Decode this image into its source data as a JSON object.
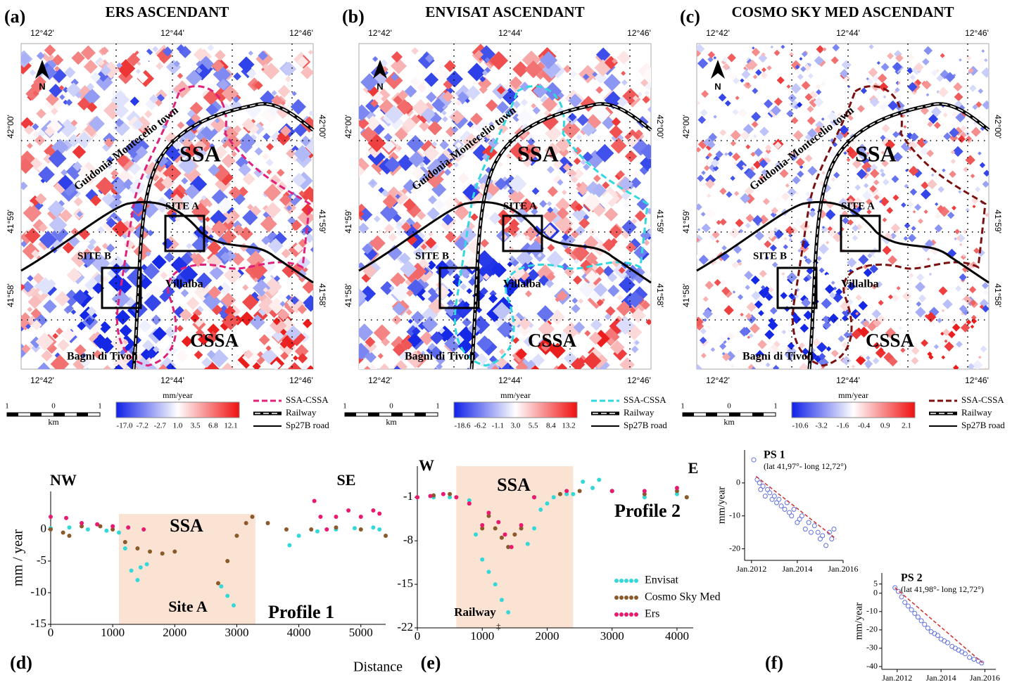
{
  "maps": [
    {
      "label": "(a)",
      "title": "ERS ASCENDANT",
      "lon_labels": [
        "12°42'",
        "12°44'",
        "12°46'"
      ],
      "lat_labels": [
        "42°00'",
        "41°59'",
        "41°58'"
      ],
      "north": "N",
      "places": {
        "ssa": "SSA",
        "cssa": "CSSA",
        "site_a": "SITE A",
        "site_b": "SITE B",
        "villalba": "Villalba",
        "bagni": "Bagni di Tivoli",
        "town": "Guidonia-Montecelio town"
      },
      "colorbar": {
        "unit": "mm/year",
        "ticks": [
          "-17.0",
          "-7.2",
          "-2.7",
          "1.0",
          "3.5",
          "6.8",
          "12.1"
        ]
      },
      "legend": [
        "SSA-CSSA",
        "Railway",
        "Sp27B road"
      ],
      "boundary_color": "#e0207a",
      "scale": {
        "labels": [
          "1",
          "0",
          "1"
        ],
        "unit": "km"
      }
    },
    {
      "label": "(b)",
      "title": "ENVISAT ASCENDANT",
      "lon_labels": [
        "12°42'",
        "12°44'",
        "12°46'"
      ],
      "lat_labels": [
        "42°00'",
        "41°59'",
        "41°58'"
      ],
      "north": "N",
      "places": {
        "ssa": "SSA",
        "cssa": "CSSA",
        "site_a": "SITE A",
        "site_b": "SITE B",
        "villalba": "Villalba",
        "bagni": "Bagni di Tivoli",
        "town": "Guidonia-Montecelio town"
      },
      "colorbar": {
        "unit": "mm/year",
        "ticks": [
          "-18.6",
          "-6.2",
          "-1.1",
          "3.0",
          "5.5",
          "8.4",
          "13.2"
        ]
      },
      "legend": [
        "SSA-CSSA",
        "Railway",
        "Sp27B road"
      ],
      "boundary_color": "#30d8e0",
      "scale": {
        "labels": [
          "1",
          "0",
          "1"
        ],
        "unit": "km"
      }
    },
    {
      "label": "(c)",
      "title": "COSMO SKY MED ASCENDANT",
      "lon_labels": [
        "12°42'",
        "12°44'",
        "12°46'"
      ],
      "lat_labels": [
        "42°00'",
        "41°59'",
        "41°58'"
      ],
      "north": "N",
      "places": {
        "ssa": "SSA",
        "cssa": "CSSA",
        "site_a": "SITE A",
        "site_b": "SITE B",
        "villalba": "Villalba",
        "bagni": "Bagni di Tivoli",
        "town": "Guidonia-Montecelio town"
      },
      "colorbar": {
        "unit": "mm/year",
        "ticks": [
          "-10.6",
          "-3.2",
          "-1.6",
          "-0.4",
          "0.9",
          "2.1"
        ]
      },
      "legend": [
        "SSA-CSSA",
        "Railway",
        "Sp27B road"
      ],
      "boundary_color": "#7a1010",
      "scale": {
        "labels": [
          "1",
          "0",
          "1"
        ],
        "unit": "km"
      }
    }
  ],
  "chart_data": [
    {
      "type": "line",
      "panel_label": "(d)",
      "ylabel": "mm / year",
      "xlabel": "Distance",
      "xlim": [
        0,
        5400
      ],
      "ylim": [
        -15,
        6
      ],
      "xticks": [
        0,
        1000,
        2000,
        3000,
        4000,
        5000
      ],
      "yticks": [
        -15,
        -10,
        -5,
        0
      ],
      "highlight": [
        1100,
        3300
      ],
      "annotations": {
        "left": "NW",
        "right": "SE",
        "zone": "SSA",
        "site": "Site A",
        "profile": "Profile 1"
      },
      "series": [
        {
          "color": "#35d8d8",
          "x": [
            0,
            300,
            600,
            900,
            1100,
            1200,
            1300,
            1400,
            1450,
            1550,
            null,
            2750,
            2850,
            2950,
            null,
            3850,
            4000,
            4300,
            4600,
            4900,
            5200,
            5300
          ],
          "values": [
            0.2,
            0.3,
            0,
            -0.2,
            -0.5,
            -3,
            -6.5,
            -8,
            -6,
            -5.5,
            null,
            -9,
            -10.5,
            -12,
            null,
            -2.5,
            -1,
            -0.3,
            0,
            0.2,
            0.3,
            0
          ]
        },
        {
          "color": "#8b5a2b",
          "x": [
            0,
            200,
            300,
            500,
            800,
            1000,
            1200,
            1400,
            1600,
            1800,
            2000,
            null,
            2700,
            2850,
            3000,
            3150,
            3250,
            3500,
            3800,
            4200,
            4600,
            5000,
            5400
          ],
          "values": [
            0,
            -0.5,
            -1,
            0.5,
            0.5,
            0,
            -2,
            -3,
            -3.5,
            -3.8,
            -3.5,
            null,
            -8.5,
            -5,
            -1,
            1,
            2,
            1,
            0,
            0,
            0.3,
            0,
            -1
          ]
        },
        {
          "color": "#e8196e",
          "x": [
            0,
            250,
            500,
            750,
            1000,
            1250,
            1500,
            null,
            4250,
            4350,
            4450,
            4600,
            4800,
            5000,
            5200,
            5300
          ],
          "values": [
            2,
            1.8,
            1,
            0.8,
            0.5,
            0.3,
            0,
            null,
            4.5,
            2,
            0,
            2,
            3,
            2,
            3,
            2.5
          ]
        }
      ]
    },
    {
      "type": "line",
      "panel_label": "(e)",
      "xlim": [
        0,
        4250
      ],
      "ylim": [
        -22,
        4
      ],
      "xticks": [
        0,
        1000,
        2000,
        3000,
        4000
      ],
      "yticks": [
        -22,
        -15,
        -8,
        -1
      ],
      "highlight": [
        600,
        2400
      ],
      "railway_x": 1250,
      "annotations": {
        "left": "W",
        "right": "E",
        "zone": "SSA",
        "profile": "Profile 2",
        "railway": "Railway"
      },
      "series": [
        {
          "name": "Envisat",
          "color": "#35d8d8",
          "x": [
            0,
            250,
            500,
            800,
            900,
            1000,
            1100,
            1200,
            1300,
            1400,
            null,
            1700,
            1800,
            1900,
            2000,
            2100,
            2300,
            2400,
            2550,
            2700,
            2800,
            3000,
            3500,
            4000,
            4150
          ],
          "values": [
            -1,
            -1,
            -1,
            -1.5,
            -7,
            -11,
            -13,
            -15,
            -17.5,
            -19.5,
            null,
            -8.5,
            -6,
            -3,
            -2,
            -1,
            -0.5,
            -0.5,
            1.5,
            0.5,
            1.8,
            0,
            -1,
            -0.5,
            -1
          ]
        },
        {
          "name": "Cosmo Sky Med",
          "color": "#8b5a2b",
          "x": [
            0,
            250,
            500,
            800,
            1000,
            1100,
            1200,
            1300,
            1400,
            1500,
            1600,
            1800,
            2200,
            2500,
            3000,
            3500,
            4000,
            4150
          ],
          "values": [
            -1,
            -0.7,
            -0.5,
            -2,
            -6,
            -4,
            -6,
            -7.5,
            -9,
            -7,
            -6,
            -1,
            -0.5,
            0,
            0,
            -0.5,
            0,
            -1
          ]
        },
        {
          "name": "Ers",
          "color": "#e8196e",
          "x": [
            0,
            200,
            400,
            600,
            800,
            1000,
            1100,
            1250,
            1350,
            1450,
            1600,
            1800,
            2300,
            3000,
            3500,
            4000
          ],
          "values": [
            -1,
            -0.8,
            -0.5,
            -1,
            -2,
            -5.5,
            -3.5,
            -5,
            -7,
            -9,
            -5.5,
            -1,
            0,
            0,
            0,
            0.5
          ]
        }
      ]
    },
    {
      "type": "scatter",
      "title": "PS 1",
      "subtitle": "(lat 41,97°- long 12,72°)",
      "ylabel": "mm/year",
      "color": "#6070e0",
      "xlim": [
        2011.7,
        2016.0
      ],
      "ylim": [
        -23.5,
        10
      ],
      "xticks": [
        {
          "value": 2012,
          "label": "Jan.2012"
        },
        {
          "value": 2014,
          "label": "Jan.2014"
        },
        {
          "value": 2016,
          "label": "Jan.2016"
        }
      ],
      "yticks": [
        -20,
        -10,
        0
      ],
      "x": [
        2012.1,
        2012.25,
        2012.35,
        2012.4,
        2012.5,
        2012.6,
        2012.7,
        2012.8,
        2012.9,
        2013.0,
        2013.1,
        2013.2,
        2013.3,
        2013.45,
        2013.55,
        2013.65,
        2013.75,
        2013.85,
        2014.0,
        2014.1,
        2014.2,
        2014.35,
        2014.5,
        2014.6,
        2014.75,
        2014.9,
        2015.0,
        2015.1,
        2015.25,
        2015.4,
        2015.5,
        2015.6
      ],
      "values": [
        7,
        1,
        0,
        -2,
        -1,
        -4,
        -2,
        -3,
        -5,
        -4,
        -6,
        -5,
        -7,
        -8,
        -6,
        -9,
        -10,
        -8,
        -12,
        -11,
        -10,
        -14,
        -12,
        -15,
        -13,
        -15,
        -17,
        -16,
        -19,
        -15,
        -17,
        -14
      ],
      "trend": {
        "color": "#d03030",
        "x": [
          2012.2,
          2015.7
        ],
        "values": [
          2,
          -17
        ]
      }
    },
    {
      "type": "scatter",
      "panel_label": "(f)",
      "title": "PS 2",
      "subtitle": "(lat 41,98°- long 12,72°)",
      "ylabel": "mm/year",
      "color": "#6070e0",
      "xlim": [
        2011.3,
        2016.5
      ],
      "ylim": [
        -41.5,
        11
      ],
      "xticks": [
        {
          "value": 2012,
          "label": "Jan.2012"
        },
        {
          "value": 2014,
          "label": "Jan.2014"
        },
        {
          "value": 2016,
          "label": "Jan.2016"
        }
      ],
      "yticks": [
        5,
        0,
        -10,
        -20,
        -30,
        -40
      ],
      "x": [
        2011.9,
        2012.05,
        2012.2,
        2012.35,
        2012.5,
        2012.65,
        2012.8,
        2012.95,
        2013.1,
        2013.25,
        2013.4,
        2013.55,
        2013.7,
        2013.85,
        2014.0,
        2014.15,
        2014.3,
        2014.5,
        2014.65,
        2014.8,
        2014.95,
        2015.1,
        2015.3,
        2015.5,
        2015.7,
        2015.85
      ],
      "values": [
        3,
        1,
        -2,
        -5,
        -7,
        -9,
        -11,
        -13,
        -15,
        -17,
        -19,
        -21,
        -22,
        -23,
        -25,
        -26,
        -27,
        -29,
        -30,
        -31,
        -32,
        -33,
        -35,
        -36,
        -37,
        -38
      ],
      "trend": {
        "color": "#d03030",
        "x": [
          2011.9,
          2015.9
        ],
        "values": [
          3,
          -38
        ]
      }
    }
  ]
}
